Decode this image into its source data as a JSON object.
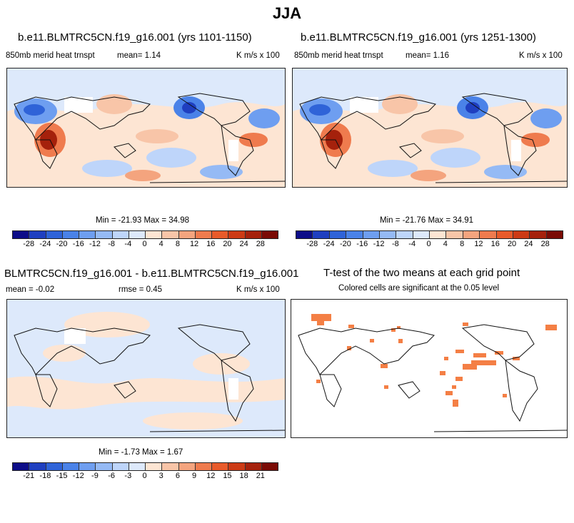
{
  "title": "JJA",
  "panels": [
    {
      "title": "b.e11.BLMTRC5CN.f19_g16.001 (yrs 1101-1150)",
      "left_label": "850mb merid heat trnspt",
      "center_label": "mean=   1.14",
      "right_label": "K m/s x 100",
      "stats": "Min = -21.93 Max =  34.98",
      "ticks": [
        "-28",
        "-24",
        "-20",
        "-16",
        "-12",
        "-8",
        "-4",
        "0",
        "4",
        "8",
        "12",
        "16",
        "20",
        "24",
        "28"
      ]
    },
    {
      "title": "b.e11.BLMTRC5CN.f19_g16.001 (yrs 1251-1300)",
      "left_label": "850mb merid heat trnspt",
      "center_label": "mean=   1.16",
      "right_label": "K m/s x 100",
      "stats": "Min = -21.76 Max =  34.91",
      "ticks": [
        "-28",
        "-24",
        "-20",
        "-16",
        "-12",
        "-8",
        "-4",
        "0",
        "4",
        "8",
        "12",
        "16",
        "20",
        "24",
        "28"
      ]
    },
    {
      "title": "BLMTRC5CN.f19_g16.001 - b.e11.BLMTRC5CN.f19_g16.001",
      "left_label": "mean =  -0.02",
      "center_label": "rmse =   0.45",
      "right_label": "K m/s x 100",
      "stats": "Min = -1.73 Max =   1.67",
      "ticks": [
        "-21",
        "-18",
        "-15",
        "-12",
        "-9",
        "-6",
        "-3",
        "0",
        "3",
        "6",
        "9",
        "12",
        "15",
        "18",
        "21"
      ]
    },
    {
      "title": "T-test of the two means at each grid point",
      "subtitle": "Colored cells are significant at the 0.05 level"
    }
  ],
  "colors": {
    "scale": [
      "#0d0d88",
      "#1f3fc0",
      "#2f63d8",
      "#4a82e8",
      "#6e9ef0",
      "#95baf5",
      "#bed5fa",
      "#dde9fb",
      "#fde5d3",
      "#f8c5a8",
      "#f4a47e",
      "#ef7b4e",
      "#e85a2a",
      "#cc3a15",
      "#a5210c",
      "#7a0b05"
    ],
    "land_line": "#111111",
    "significant": "#f47f45"
  }
}
